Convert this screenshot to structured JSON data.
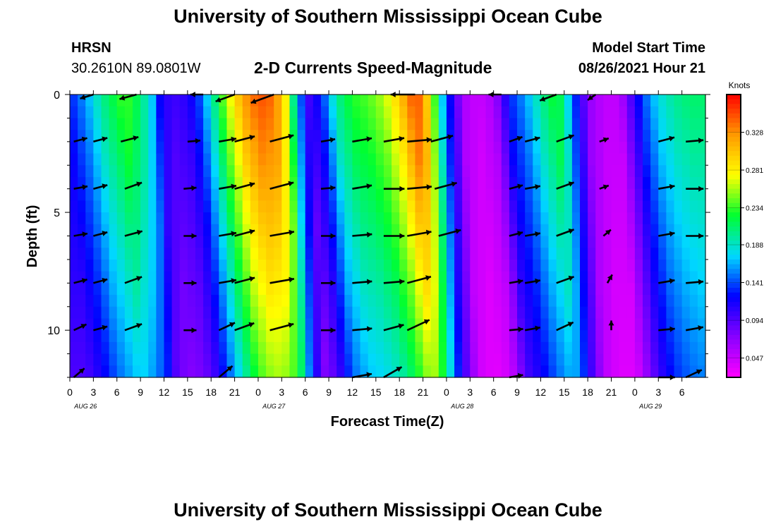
{
  "header": {
    "title": "University of Southern Mississippi Ocean Cube",
    "station": "HRSN",
    "coordinates": "30.2610N  89.0801W",
    "subtitle": "2-D Currents Speed-Magnitude",
    "model_start_label": "Model Start Time",
    "model_start_value": "08/26/2021 Hour 21"
  },
  "footer": {
    "title": "University of Southern Mississippi Ocean Cube"
  },
  "chart_data": {
    "type": "heatmap",
    "title": "2-D Currents Speed-Magnitude",
    "xlabel": "Forecast Time(Z)",
    "ylabel": "Depth (ft)",
    "x_hours_from_aug26_00z": [
      0,
      81
    ],
    "x_tick_labels": [
      "0",
      "3",
      "6",
      "9",
      "12",
      "15",
      "18",
      "21",
      "0",
      "3",
      "6",
      "9",
      "12",
      "15",
      "18",
      "21",
      "0",
      "3",
      "6",
      "9",
      "12",
      "15",
      "18",
      "21",
      "0",
      "3",
      "6"
    ],
    "date_labels": [
      {
        "text": "AUG 26",
        "hour": 2
      },
      {
        "text": "AUG 27",
        "hour": 26
      },
      {
        "text": "AUG 28",
        "hour": 50
      },
      {
        "text": "AUG 29",
        "hour": 74
      }
    ],
    "ylim": [
      0,
      12
    ],
    "y_ticks": [
      0,
      5,
      10
    ],
    "y_inverted": true,
    "colorbar": {
      "unit": "Knots",
      "levels": [
        0.047,
        0.094,
        0.141,
        0.188,
        0.234,
        0.281,
        0.328
      ],
      "range": [
        0.023,
        0.375
      ],
      "colors": [
        "#ff00ff",
        "#8800ff",
        "#0000ff",
        "#00d8ff",
        "#00ff30",
        "#ffff00",
        "#ff9900",
        "#ff0000"
      ]
    },
    "surface_speed_knots_by_hour": [
      [
        0,
        0.13
      ],
      [
        2,
        0.16
      ],
      [
        4,
        0.2
      ],
      [
        7,
        0.24
      ],
      [
        9,
        0.21
      ],
      [
        10.5,
        0.17
      ],
      [
        11.5,
        0.12
      ],
      [
        13,
        0.1
      ],
      [
        15,
        0.11
      ],
      [
        16.5,
        0.14
      ],
      [
        18,
        0.19
      ],
      [
        20,
        0.26
      ],
      [
        22,
        0.32
      ],
      [
        24,
        0.35
      ],
      [
        26,
        0.34
      ],
      [
        27.5,
        0.28
      ],
      [
        28.5,
        0.2
      ],
      [
        29.5,
        0.14
      ],
      [
        30.5,
        0.1
      ],
      [
        32,
        0.13
      ],
      [
        34,
        0.2
      ],
      [
        36,
        0.23
      ],
      [
        38,
        0.24
      ],
      [
        40,
        0.26
      ],
      [
        42,
        0.3
      ],
      [
        43,
        0.33
      ],
      [
        44,
        0.355
      ],
      [
        45,
        0.33
      ],
      [
        46,
        0.27
      ],
      [
        47,
        0.2
      ],
      [
        48,
        0.14
      ],
      [
        49,
        0.1
      ],
      [
        50,
        0.06
      ],
      [
        52,
        0.045
      ],
      [
        54,
        0.06
      ],
      [
        55,
        0.09
      ],
      [
        56,
        0.13
      ],
      [
        58,
        0.16
      ],
      [
        60,
        0.2
      ],
      [
        62,
        0.23
      ],
      [
        63,
        0.2
      ],
      [
        64,
        0.15
      ],
      [
        65,
        0.11
      ],
      [
        66,
        0.07
      ],
      [
        68,
        0.05
      ],
      [
        70,
        0.05
      ],
      [
        71,
        0.08
      ],
      [
        72,
        0.11
      ],
      [
        73,
        0.14
      ],
      [
        75,
        0.18
      ],
      [
        77,
        0.2
      ],
      [
        79,
        0.21
      ],
      [
        81,
        0.21
      ]
    ],
    "vectors": [
      {
        "hour": 3,
        "depth": 0,
        "speed": 0.13,
        "dir_deg": 197
      },
      {
        "hour": 8.5,
        "depth": 0,
        "speed": 0.2,
        "dir_deg": 195
      },
      {
        "hour": 17,
        "depth": 0,
        "speed": 0.11,
        "dir_deg": 180
      },
      {
        "hour": 21,
        "depth": 0,
        "speed": 0.25,
        "dir_deg": 200
      },
      {
        "hour": 26,
        "depth": 0,
        "speed": 0.33,
        "dir_deg": 200
      },
      {
        "hour": 44,
        "depth": 0,
        "speed": 0.33,
        "dir_deg": 180
      },
      {
        "hour": 55,
        "depth": 0,
        "speed": 0.11,
        "dir_deg": 180
      },
      {
        "hour": 62,
        "depth": 0,
        "speed": 0.2,
        "dir_deg": 200
      },
      {
        "hour": 67,
        "depth": 0,
        "speed": 0.05,
        "dir_deg": 215
      },
      {
        "hour": 0.5,
        "depth": 2,
        "speed": 0.13,
        "dir_deg": 15
      },
      {
        "hour": 3,
        "depth": 2,
        "speed": 0.14,
        "dir_deg": 15
      },
      {
        "hour": 6.5,
        "depth": 2,
        "speed": 0.21,
        "dir_deg": 15
      },
      {
        "hour": 15,
        "depth": 2,
        "speed": 0.11,
        "dir_deg": 5
      },
      {
        "hour": 19,
        "depth": 2,
        "speed": 0.2,
        "dir_deg": 10
      },
      {
        "hour": 21,
        "depth": 2,
        "speed": 0.26,
        "dir_deg": 15
      },
      {
        "hour": 25.5,
        "depth": 2,
        "speed": 0.33,
        "dir_deg": 15
      },
      {
        "hour": 32,
        "depth": 2,
        "speed": 0.14,
        "dir_deg": 10
      },
      {
        "hour": 36,
        "depth": 2,
        "speed": 0.24,
        "dir_deg": 10
      },
      {
        "hour": 40,
        "depth": 2,
        "speed": 0.26,
        "dir_deg": 10
      },
      {
        "hour": 43,
        "depth": 2,
        "speed": 0.33,
        "dir_deg": 5
      },
      {
        "hour": 46,
        "depth": 2,
        "speed": 0.3,
        "dir_deg": 15
      },
      {
        "hour": 56,
        "depth": 2,
        "speed": 0.13,
        "dir_deg": 20
      },
      {
        "hour": 58,
        "depth": 2,
        "speed": 0.16,
        "dir_deg": 15
      },
      {
        "hour": 62,
        "depth": 2,
        "speed": 0.22,
        "dir_deg": 20
      },
      {
        "hour": 67.5,
        "depth": 2,
        "speed": 0.05,
        "dir_deg": 20
      },
      {
        "hour": 75,
        "depth": 2,
        "speed": 0.18,
        "dir_deg": 15
      },
      {
        "hour": 78.5,
        "depth": 2,
        "speed": 0.2,
        "dir_deg": 5
      },
      {
        "hour": 0.5,
        "depth": 4,
        "speed": 0.13,
        "dir_deg": 10
      },
      {
        "hour": 3,
        "depth": 4,
        "speed": 0.14,
        "dir_deg": 15
      },
      {
        "hour": 7,
        "depth": 4,
        "speed": 0.21,
        "dir_deg": 20
      },
      {
        "hour": 14.5,
        "depth": 4,
        "speed": 0.11,
        "dir_deg": 5
      },
      {
        "hour": 19,
        "depth": 4,
        "speed": 0.2,
        "dir_deg": 10
      },
      {
        "hour": 21,
        "depth": 4,
        "speed": 0.26,
        "dir_deg": 15
      },
      {
        "hour": 25.5,
        "depth": 4,
        "speed": 0.33,
        "dir_deg": 15
      },
      {
        "hour": 32,
        "depth": 4,
        "speed": 0.14,
        "dir_deg": 5
      },
      {
        "hour": 36,
        "depth": 4,
        "speed": 0.24,
        "dir_deg": 10
      },
      {
        "hour": 40,
        "depth": 4,
        "speed": 0.26,
        "dir_deg": 0
      },
      {
        "hour": 43,
        "depth": 4,
        "speed": 0.33,
        "dir_deg": 5
      },
      {
        "hour": 46.5,
        "depth": 4,
        "speed": 0.3,
        "dir_deg": 15
      },
      {
        "hour": 56,
        "depth": 4,
        "speed": 0.13,
        "dir_deg": 15
      },
      {
        "hour": 58,
        "depth": 4,
        "speed": 0.16,
        "dir_deg": 10
      },
      {
        "hour": 62,
        "depth": 4,
        "speed": 0.22,
        "dir_deg": 20
      },
      {
        "hour": 67.5,
        "depth": 4,
        "speed": 0.05,
        "dir_deg": 20
      },
      {
        "hour": 75,
        "depth": 4,
        "speed": 0.18,
        "dir_deg": 10
      },
      {
        "hour": 78.5,
        "depth": 4,
        "speed": 0.2,
        "dir_deg": 0
      },
      {
        "hour": 0.5,
        "depth": 6,
        "speed": 0.13,
        "dir_deg": 10
      },
      {
        "hour": 3,
        "depth": 6,
        "speed": 0.14,
        "dir_deg": 15
      },
      {
        "hour": 7,
        "depth": 6,
        "speed": 0.21,
        "dir_deg": 15
      },
      {
        "hour": 14.5,
        "depth": 6,
        "speed": 0.11,
        "dir_deg": 0
      },
      {
        "hour": 19,
        "depth": 6,
        "speed": 0.2,
        "dir_deg": 10
      },
      {
        "hour": 21,
        "depth": 6,
        "speed": 0.26,
        "dir_deg": 15
      },
      {
        "hour": 25.5,
        "depth": 6,
        "speed": 0.33,
        "dir_deg": 10
      },
      {
        "hour": 32,
        "depth": 6,
        "speed": 0.14,
        "dir_deg": 0
      },
      {
        "hour": 36,
        "depth": 6,
        "speed": 0.24,
        "dir_deg": 5
      },
      {
        "hour": 40,
        "depth": 6,
        "speed": 0.26,
        "dir_deg": 0
      },
      {
        "hour": 43,
        "depth": 6,
        "speed": 0.33,
        "dir_deg": 10
      },
      {
        "hour": 47,
        "depth": 6,
        "speed": 0.3,
        "dir_deg": 15
      },
      {
        "hour": 56,
        "depth": 6,
        "speed": 0.13,
        "dir_deg": 15
      },
      {
        "hour": 58,
        "depth": 6,
        "speed": 0.16,
        "dir_deg": 10
      },
      {
        "hour": 62,
        "depth": 6,
        "speed": 0.22,
        "dir_deg": 20
      },
      {
        "hour": 68,
        "depth": 6,
        "speed": 0.05,
        "dir_deg": 40
      },
      {
        "hour": 75,
        "depth": 6,
        "speed": 0.18,
        "dir_deg": 10
      },
      {
        "hour": 78.5,
        "depth": 6,
        "speed": 0.2,
        "dir_deg": 0
      },
      {
        "hour": 0.5,
        "depth": 8,
        "speed": 0.13,
        "dir_deg": 15
      },
      {
        "hour": 3,
        "depth": 8,
        "speed": 0.14,
        "dir_deg": 15
      },
      {
        "hour": 7,
        "depth": 8,
        "speed": 0.21,
        "dir_deg": 20
      },
      {
        "hour": 14.5,
        "depth": 8,
        "speed": 0.11,
        "dir_deg": 0
      },
      {
        "hour": 19,
        "depth": 8,
        "speed": 0.2,
        "dir_deg": 10
      },
      {
        "hour": 21,
        "depth": 8,
        "speed": 0.26,
        "dir_deg": 15
      },
      {
        "hour": 25.5,
        "depth": 8,
        "speed": 0.33,
        "dir_deg": 10
      },
      {
        "hour": 32,
        "depth": 8,
        "speed": 0.14,
        "dir_deg": 0
      },
      {
        "hour": 36,
        "depth": 8,
        "speed": 0.24,
        "dir_deg": 5
      },
      {
        "hour": 40,
        "depth": 8,
        "speed": 0.26,
        "dir_deg": 5
      },
      {
        "hour": 43,
        "depth": 8,
        "speed": 0.33,
        "dir_deg": 15
      },
      {
        "hour": 56,
        "depth": 8,
        "speed": 0.13,
        "dir_deg": 10
      },
      {
        "hour": 58,
        "depth": 8,
        "speed": 0.16,
        "dir_deg": 10
      },
      {
        "hour": 62,
        "depth": 8,
        "speed": 0.22,
        "dir_deg": 20
      },
      {
        "hour": 68.5,
        "depth": 8,
        "speed": 0.05,
        "dir_deg": 60
      },
      {
        "hour": 75,
        "depth": 8,
        "speed": 0.18,
        "dir_deg": 10
      },
      {
        "hour": 78.5,
        "depth": 8,
        "speed": 0.2,
        "dir_deg": 5
      },
      {
        "hour": 0.5,
        "depth": 10,
        "speed": 0.13,
        "dir_deg": 25
      },
      {
        "hour": 3,
        "depth": 10,
        "speed": 0.14,
        "dir_deg": 15
      },
      {
        "hour": 7,
        "depth": 10,
        "speed": 0.21,
        "dir_deg": 20
      },
      {
        "hour": 14.5,
        "depth": 10,
        "speed": 0.11,
        "dir_deg": 0
      },
      {
        "hour": 19,
        "depth": 10,
        "speed": 0.2,
        "dir_deg": 25
      },
      {
        "hour": 21,
        "depth": 10,
        "speed": 0.26,
        "dir_deg": 20
      },
      {
        "hour": 25.5,
        "depth": 10,
        "speed": 0.33,
        "dir_deg": 15
      },
      {
        "hour": 32,
        "depth": 10,
        "speed": 0.14,
        "dir_deg": 0
      },
      {
        "hour": 36,
        "depth": 10,
        "speed": 0.24,
        "dir_deg": 5
      },
      {
        "hour": 40,
        "depth": 10,
        "speed": 0.26,
        "dir_deg": 15
      },
      {
        "hour": 43,
        "depth": 10,
        "speed": 0.33,
        "dir_deg": 25
      },
      {
        "hour": 56,
        "depth": 10,
        "speed": 0.13,
        "dir_deg": 5
      },
      {
        "hour": 58,
        "depth": 10,
        "speed": 0.16,
        "dir_deg": 10
      },
      {
        "hour": 62,
        "depth": 10,
        "speed": 0.22,
        "dir_deg": 25
      },
      {
        "hour": 69,
        "depth": 10,
        "speed": 0.05,
        "dir_deg": 90
      },
      {
        "hour": 75,
        "depth": 10,
        "speed": 0.18,
        "dir_deg": 5
      },
      {
        "hour": 78.5,
        "depth": 10,
        "speed": 0.2,
        "dir_deg": 10
      },
      {
        "hour": 0.5,
        "depth": 12,
        "speed": 0.13,
        "dir_deg": 40
      },
      {
        "hour": 19,
        "depth": 12,
        "speed": 0.2,
        "dir_deg": 40
      },
      {
        "hour": 36,
        "depth": 12,
        "speed": 0.24,
        "dir_deg": 10
      },
      {
        "hour": 40,
        "depth": 12,
        "speed": 0.26,
        "dir_deg": 30
      },
      {
        "hour": 56,
        "depth": 12,
        "speed": 0.13,
        "dir_deg": 10
      },
      {
        "hour": 75,
        "depth": 12,
        "speed": 0.18,
        "dir_deg": 0
      },
      {
        "hour": 78.5,
        "depth": 12,
        "speed": 0.2,
        "dir_deg": 25
      }
    ]
  }
}
